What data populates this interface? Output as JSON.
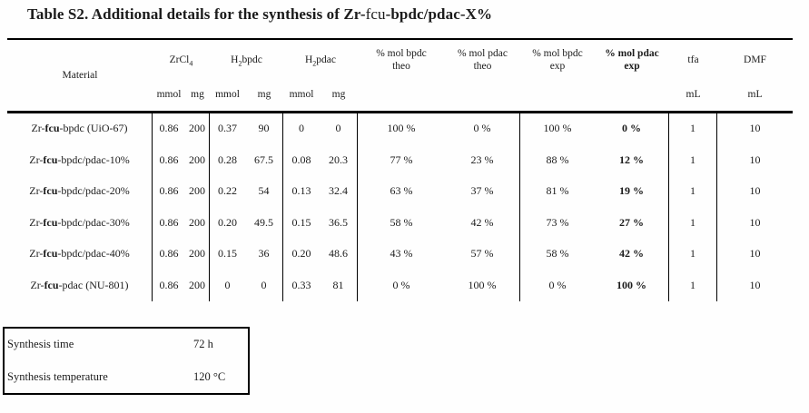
{
  "title": {
    "part1": "Table S2. Additional details for the synthesis of Zr-",
    "fcu": "fcu",
    "part2": "-bpdc/pdac-X%"
  },
  "table": {
    "headers": {
      "material": "Material",
      "zrcl4": {
        "base": "ZrCl",
        "sub": "4",
        "rest": ""
      },
      "h2bpdc": {
        "base": "H",
        "sub": "2",
        "rest": "bpdc"
      },
      "h2pdac": {
        "base": "H",
        "sub": "2",
        "rest": "pdac"
      },
      "mol_bpdc_theo": {
        "line1": "% mol bpdc",
        "line2": "theo"
      },
      "mol_pdac_theo": {
        "line1": "% mol pdac",
        "line2": "theo"
      },
      "mol_bpdc_exp": {
        "line1": "% mol bpdc",
        "line2": "exp"
      },
      "mol_pdac_exp": {
        "line1": "% mol pdac",
        "line2": "exp"
      },
      "tfa": "tfa",
      "dmf": "DMF",
      "units": {
        "zr_mmol": "mmol",
        "zr_mg": "mg",
        "bpdc_mmol": "mmol",
        "bpdc_mg": "mg",
        "pdac_mmol": "mmol",
        "pdac_mg": "mg",
        "tfa_ml": "mL",
        "dmf_ml": "mL"
      }
    },
    "rows": [
      {
        "material": {
          "pre": "Zr-",
          "fcu": "fcu",
          "post": "-bpdc (UiO-67)"
        },
        "cells": [
          "0.86",
          "200",
          "0.37",
          "90",
          "0",
          "0",
          "100 %",
          "0 %",
          "100 %",
          "0 %",
          "1",
          "10"
        ]
      },
      {
        "material": {
          "pre": "Zr-",
          "fcu": "fcu",
          "post": "-bpdc/pdac-10%"
        },
        "cells": [
          "0.86",
          "200",
          "0.28",
          "67.5",
          "0.08",
          "20.3",
          "77 %",
          "23 %",
          "88 %",
          "12 %",
          "1",
          "10"
        ]
      },
      {
        "material": {
          "pre": "Zr-",
          "fcu": "fcu",
          "post": "-bpdc/pdac-20%"
        },
        "cells": [
          "0.86",
          "200",
          "0.22",
          "54",
          "0.13",
          "32.4",
          "63 %",
          "37 %",
          "81 %",
          "19 %",
          "1",
          "10"
        ]
      },
      {
        "material": {
          "pre": "Zr-",
          "fcu": "fcu",
          "post": "-bpdc/pdac-30%"
        },
        "cells": [
          "0.86",
          "200",
          "0.20",
          "49.5",
          "0.15",
          "36.5",
          "58 %",
          "42 %",
          "73 %",
          "27 %",
          "1",
          "10"
        ]
      },
      {
        "material": {
          "pre": "Zr-",
          "fcu": "fcu",
          "post": "-bpdc/pdac-40%"
        },
        "cells": [
          "0.86",
          "200",
          "0.15",
          "36",
          "0.20",
          "48.6",
          "43 %",
          "57 %",
          "58 %",
          "42 %",
          "1",
          "10"
        ]
      },
      {
        "material": {
          "pre": "Zr-",
          "fcu": "fcu",
          "post": "-pdac (NU-801)"
        },
        "cells": [
          "0.86",
          "200",
          "0",
          "0",
          "0.33",
          "81",
          "0 %",
          "100 %",
          "0 %",
          "100 %",
          "1",
          "10"
        ]
      }
    ]
  },
  "conditions": {
    "time_label": "Synthesis time",
    "time_value": "72 h",
    "temp_label": "Synthesis temperature",
    "temp_value": "120 °C"
  }
}
